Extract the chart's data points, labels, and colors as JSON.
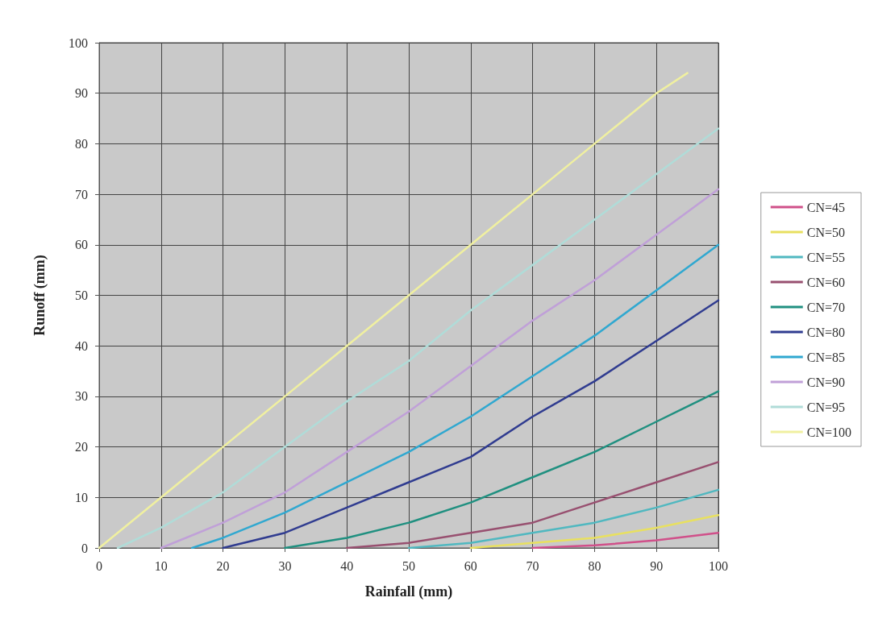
{
  "chart_data": {
    "type": "line",
    "xlabel": "Rainfall (mm)",
    "ylabel": "Runoff (mm)",
    "xlim": [
      0,
      100
    ],
    "xticks": [
      0,
      10,
      20,
      30,
      40,
      50,
      60,
      70,
      80,
      90,
      100
    ],
    "ylim": [
      0,
      100
    ],
    "yticks": [
      0,
      10,
      20,
      30,
      40,
      50,
      60,
      70,
      80,
      90,
      100
    ],
    "grid": true,
    "legend": "right",
    "marker": "none",
    "line_style": "solid",
    "series": [
      {
        "name": "CN=45",
        "color": "#d0508a",
        "x": [
          70,
          80,
          90,
          100
        ],
        "values": [
          0,
          0.5,
          1.5,
          3
        ]
      },
      {
        "name": "CN=50",
        "color": "#e8e060",
        "x": [
          60,
          70,
          80,
          90,
          100
        ],
        "values": [
          0,
          1,
          2,
          4,
          6.5
        ]
      },
      {
        "name": "CN=55",
        "color": "#50b8c0",
        "x": [
          50,
          60,
          70,
          80,
          90,
          100
        ],
        "values": [
          0,
          1,
          3,
          5,
          8,
          11.5
        ]
      },
      {
        "name": "CN=60",
        "color": "#985070",
        "x": [
          40,
          50,
          60,
          70,
          80,
          90,
          100
        ],
        "values": [
          0,
          1,
          3,
          5,
          9,
          13,
          17
        ]
      },
      {
        "name": "CN=70",
        "color": "#209080",
        "x": [
          30,
          40,
          50,
          60,
          70,
          80,
          90,
          100
        ],
        "values": [
          0,
          2,
          5,
          9,
          14,
          19,
          25,
          31
        ]
      },
      {
        "name": "CN=80",
        "color": "#303c90",
        "x": [
          20,
          30,
          40,
          50,
          60,
          70,
          80,
          90,
          100
        ],
        "values": [
          0,
          3,
          8,
          13,
          18,
          26,
          33,
          41,
          49
        ]
      },
      {
        "name": "CN=85",
        "color": "#30a8d0",
        "x": [
          15,
          20,
          30,
          40,
          50,
          60,
          70,
          80,
          90,
          100
        ],
        "values": [
          0,
          2,
          7,
          13,
          19,
          26,
          34,
          42,
          51,
          60
        ]
      },
      {
        "name": "CN=90",
        "color": "#c0a0d8",
        "x": [
          10,
          20,
          30,
          40,
          50,
          60,
          70,
          80,
          90,
          100
        ],
        "values": [
          0,
          5,
          11,
          19,
          27,
          36,
          45,
          53,
          62,
          71
        ]
      },
      {
        "name": "CN=95",
        "color": "#b0dcd8",
        "x": [
          3,
          10,
          20,
          30,
          40,
          50,
          60,
          70,
          80,
          90,
          100
        ],
        "values": [
          0,
          4,
          11,
          20,
          29,
          37,
          47,
          56,
          65,
          74,
          83
        ]
      },
      {
        "name": "CN=100",
        "color": "#f0f0a0",
        "x": [
          0,
          10,
          20,
          30,
          40,
          50,
          60,
          70,
          80,
          90,
          95
        ],
        "values": [
          0,
          10,
          20,
          30,
          40,
          50,
          60,
          70,
          80,
          90,
          94
        ]
      }
    ]
  }
}
